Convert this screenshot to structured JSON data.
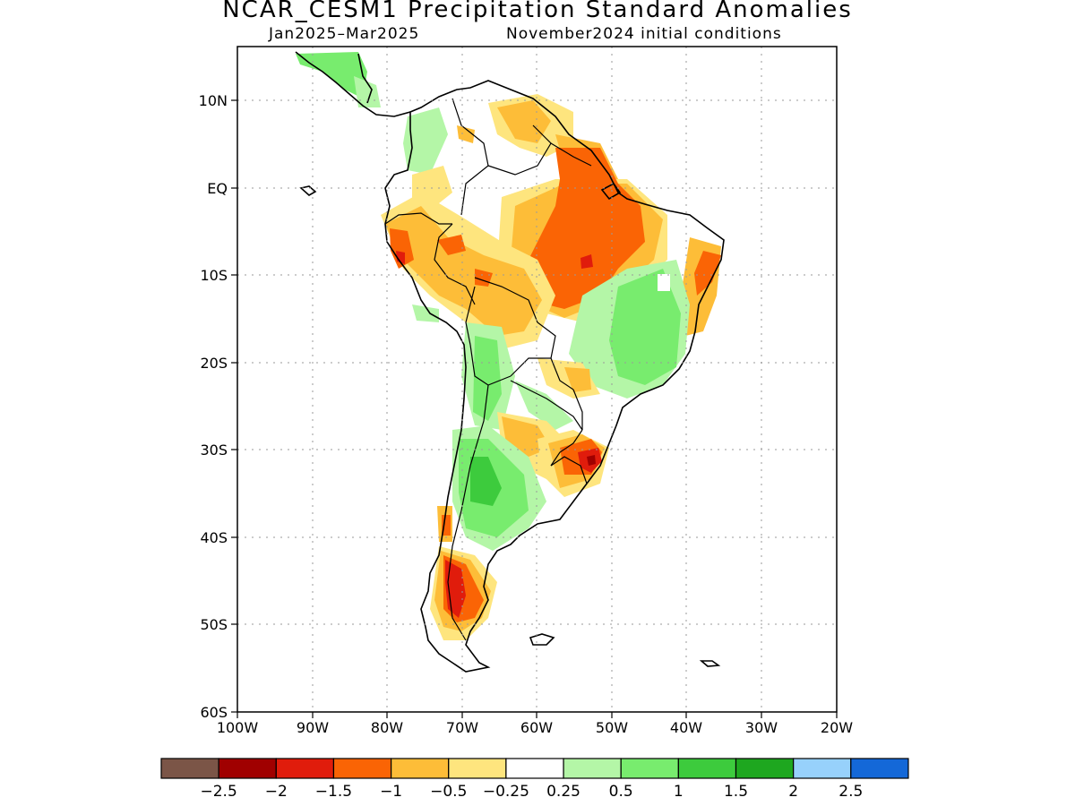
{
  "title": "NCAR_CESM1 Precipitation Standard Anomalies",
  "subtitle_left": "Jan2025–Mar2025",
  "subtitle_right": "November2024 initial conditions",
  "lat_labels": [
    "10N",
    "EQ",
    "10S",
    "20S",
    "30S",
    "40S",
    "50S",
    "60S"
  ],
  "lon_labels": [
    "100W",
    "90W",
    "80W",
    "70W",
    "60W",
    "50W",
    "40W",
    "30W",
    "20W"
  ],
  "colorbar": {
    "colors": [
      "#7b5547",
      "#a00000",
      "#e01c0c",
      "#fa6405",
      "#fdbd38",
      "#fee57e",
      "#ffffff",
      "#b4f6a7",
      "#78ec6e",
      "#3dcb3d",
      "#1ea71f",
      "#97d1fb",
      "#1468d8"
    ],
    "labels": [
      "−2.5",
      "−2",
      "−1.5",
      "−1",
      "−0.5",
      "−0.25",
      "0.25",
      "0.5",
      "1",
      "1.5",
      "2",
      "2.5"
    ]
  },
  "palette": {
    "neg_1": "#fa6405",
    "neg_05": "#fdbd38",
    "neg_025": "#fee57e",
    "neg_15": "#e01c0c",
    "neg_2": "#a00000",
    "pos_025": "#b4f6a7",
    "pos_05": "#78ec6e",
    "pos_1": "#3dcb3d"
  }
}
